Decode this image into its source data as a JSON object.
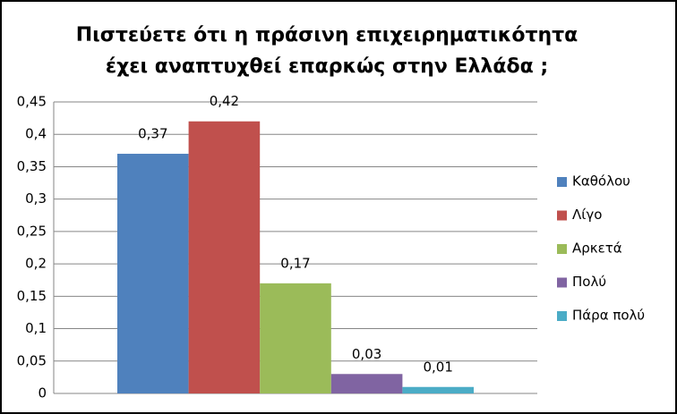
{
  "chart_data": {
    "type": "bar",
    "title": [
      "Πιστεύετε ότι η πράσινη επιχειρηματικότητα",
      "έχει αναπτυχθεί επαρκώς στην Ελλάδα ;"
    ],
    "categories": [
      null
    ],
    "series": [
      {
        "name": "Καθόλου",
        "color": "#4f81bd",
        "values": [
          0.37
        ],
        "value_labels": [
          "0,37"
        ]
      },
      {
        "name": "Λίγο",
        "color": "#c0504d",
        "values": [
          0.42
        ],
        "value_labels": [
          "0,42"
        ]
      },
      {
        "name": "Αρκετά",
        "color": "#9bbb59",
        "values": [
          0.17
        ],
        "value_labels": [
          "0,17"
        ]
      },
      {
        "name": "Πολύ",
        "color": "#8064a2",
        "values": [
          0.03
        ],
        "value_labels": [
          "0,03"
        ]
      },
      {
        "name": "Πάρα πολύ",
        "color": "#4bacc6",
        "values": [
          0.01
        ],
        "value_labels": [
          "0,01"
        ]
      }
    ],
    "ylim": [
      0,
      0.45
    ],
    "yticks": [
      0,
      {
        "value": 0.05,
        "label": "0,05"
      },
      {
        "value": 0.1,
        "label": "0,1"
      },
      {
        "value": 0.15,
        "label": "0,15"
      },
      {
        "value": 0.2,
        "label": "0,2"
      },
      {
        "value": 0.25,
        "label": "0,25"
      },
      {
        "value": 0.3,
        "label": "0,3"
      },
      {
        "value": 0.35,
        "label": "0,35"
      },
      {
        "value": 0.4,
        "label": "0,4"
      },
      {
        "value": 0.45,
        "label": "0,45"
      }
    ],
    "grid": true,
    "legend": "right"
  }
}
